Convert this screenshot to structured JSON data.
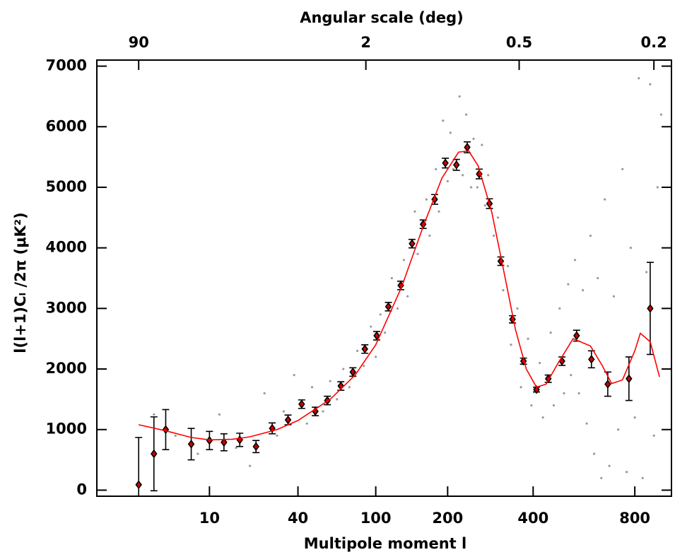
{
  "chart_data": {
    "type": "scatter",
    "title": "Angular scale (deg)",
    "x_label": "Multipole moment l",
    "y_label": "l(l+1)Cₗ /2π (μK²)",
    "xscale": "power",
    "xscale_exponent": 0.25,
    "xlim": [
      0.5,
      1000
    ],
    "ylim": [
      -100,
      7100
    ],
    "xticks": [
      10,
      40,
      100,
      200,
      400,
      800
    ],
    "yticks": [
      0,
      1000,
      2000,
      3000,
      4000,
      5000,
      6000,
      7000
    ],
    "top_ticks": [
      {
        "value": 2,
        "label": "90"
      },
      {
        "value": 90,
        "label": "2"
      },
      {
        "value": 360,
        "label": "0.5"
      },
      {
        "value": 900,
        "label": "0.2"
      }
    ],
    "series": [
      {
        "type": "scatter",
        "color": "#9a9a9a",
        "x": [
          3,
          5,
          8,
          12,
          16,
          20,
          25,
          30,
          33,
          38,
          45,
          48,
          55,
          60,
          65,
          70,
          75,
          82,
          88,
          95,
          100,
          105,
          110,
          118,
          125,
          133,
          138,
          148,
          152,
          165,
          170,
          180,
          185,
          192,
          200,
          205,
          210,
          222,
          228,
          235,
          245,
          250,
          258,
          268,
          275,
          282,
          295,
          305,
          318,
          330,
          338,
          355,
          365,
          385,
          395,
          420,
          430,
          455,
          465,
          485,
          500,
          515,
          525,
          540,
          555,
          570,
          585,
          600,
          615,
          630,
          645,
          660,
          680,
          700,
          720,
          740,
          760,
          780,
          800,
          820,
          840,
          860,
          880,
          900,
          920,
          940
        ],
        "values": [
          1250,
          900,
          600,
          1250,
          700,
          400,
          1600,
          900,
          1300,
          1900,
          1100,
          1700,
          1300,
          1800,
          1500,
          2000,
          1700,
          2300,
          2050,
          2700,
          2200,
          2900,
          2600,
          3500,
          3000,
          3800,
          3200,
          4600,
          3900,
          4800,
          4200,
          5300,
          4600,
          6100,
          5100,
          5900,
          5300,
          6500,
          5200,
          6200,
          5000,
          5800,
          5000,
          5700,
          4700,
          5200,
          4200,
          4500,
          3300,
          3700,
          2400,
          3000,
          1700,
          2500,
          1400,
          2100,
          1200,
          2600,
          1400,
          3000,
          1600,
          3400,
          1900,
          3800,
          1600,
          3300,
          1100,
          4200,
          600,
          3500,
          200,
          4800,
          400,
          3200,
          1000,
          5300,
          300,
          4000,
          1200,
          6800,
          200,
          3600,
          6700,
          900,
          5000,
          6200
        ]
      },
      {
        "type": "errorbar",
        "color": "#000000",
        "fill": "#cc0000",
        "x": [
          2,
          3,
          4,
          7,
          10,
          13,
          17,
          22,
          28,
          35,
          42,
          50,
          58,
          68,
          78,
          89,
          101,
          114,
          129,
          144,
          160,
          178,
          196,
          216,
          237,
          262,
          285,
          312,
          342,
          372,
          410,
          447,
          493,
          546,
          604,
          673,
          771,
          880
        ],
        "values": [
          90,
          600,
          1000,
          760,
          820,
          790,
          830,
          720,
          1020,
          1160,
          1420,
          1300,
          1480,
          1720,
          1950,
          2330,
          2550,
          3030,
          3380,
          4070,
          4390,
          4800,
          5400,
          5370,
          5660,
          5220,
          4730,
          3780,
          2820,
          2130,
          1660,
          1840,
          2130,
          2550,
          2160,
          1750,
          1840,
          3000
        ],
        "errors": [
          780,
          610,
          330,
          260,
          150,
          140,
          110,
          100,
          90,
          80,
          70,
          70,
          70,
          70,
          70,
          70,
          70,
          70,
          70,
          70,
          70,
          80,
          80,
          90,
          90,
          80,
          80,
          70,
          60,
          50,
          40,
          60,
          70,
          90,
          140,
          200,
          360,
          760
        ]
      },
      {
        "type": "line",
        "color": "#ff0000",
        "x": [
          2,
          4,
          7,
          10,
          15,
          20,
          30,
          40,
          60,
          80,
          100,
          130,
          160,
          190,
          220,
          240,
          260,
          290,
          320,
          350,
          380,
          410,
          440,
          480,
          533,
          600,
          650,
          690,
          740,
          800,
          828,
          880,
          931
        ],
        "values": [
          1080,
          980,
          870,
          830,
          840,
          880,
          1000,
          1150,
          1500,
          1900,
          2400,
          3350,
          4350,
          5150,
          5580,
          5600,
          5350,
          4600,
          3600,
          2650,
          2000,
          1700,
          1750,
          2100,
          2500,
          2380,
          2050,
          1760,
          1820,
          2300,
          2590,
          2450,
          1870
        ]
      }
    ]
  }
}
